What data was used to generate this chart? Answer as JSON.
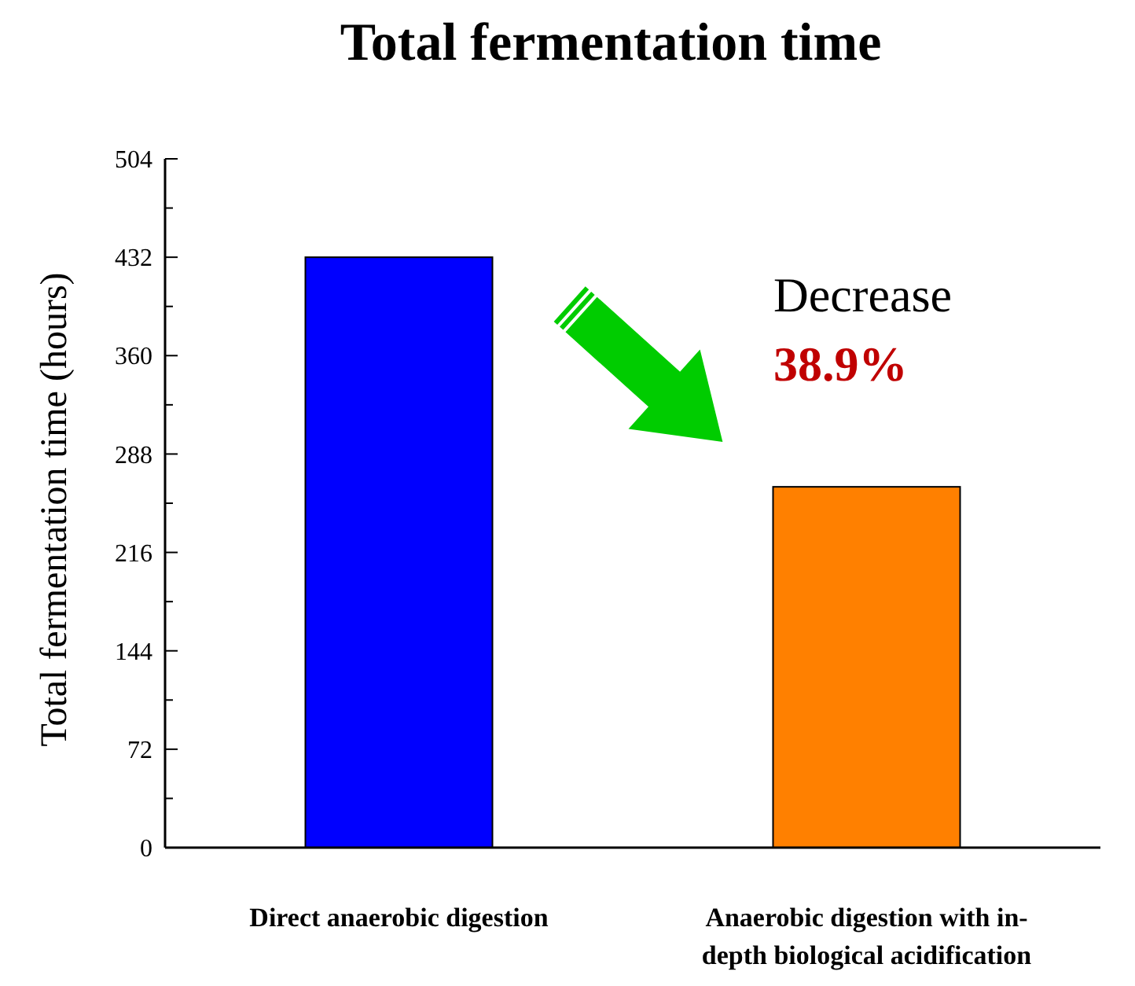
{
  "chart_data": {
    "type": "bar",
    "title": "Total fermentation time",
    "ylabel": "Total fermentation time (hours)",
    "categories": [
      "Direct anaerobic digestion",
      "Anaerobic digestion with in-depth biological acidification"
    ],
    "values": [
      432,
      264
    ],
    "colors": [
      "#0000ff",
      "#ff8000"
    ],
    "ylim": [
      0,
      504
    ],
    "yticks": [
      0,
      {
        "value": 36,
        "label": null
      },
      72,
      {
        "value": 108,
        "label": null
      },
      144,
      {
        "value": 180,
        "label": null
      },
      216,
      {
        "value": 252,
        "label": null
      },
      288,
      {
        "value": 324,
        "label": null
      },
      360,
      {
        "value": 396,
        "label": null
      },
      432,
      {
        "value": 468,
        "label": null
      },
      504
    ],
    "annotations": [
      "Decrease",
      "38.9%"
    ],
    "grid": false
  }
}
